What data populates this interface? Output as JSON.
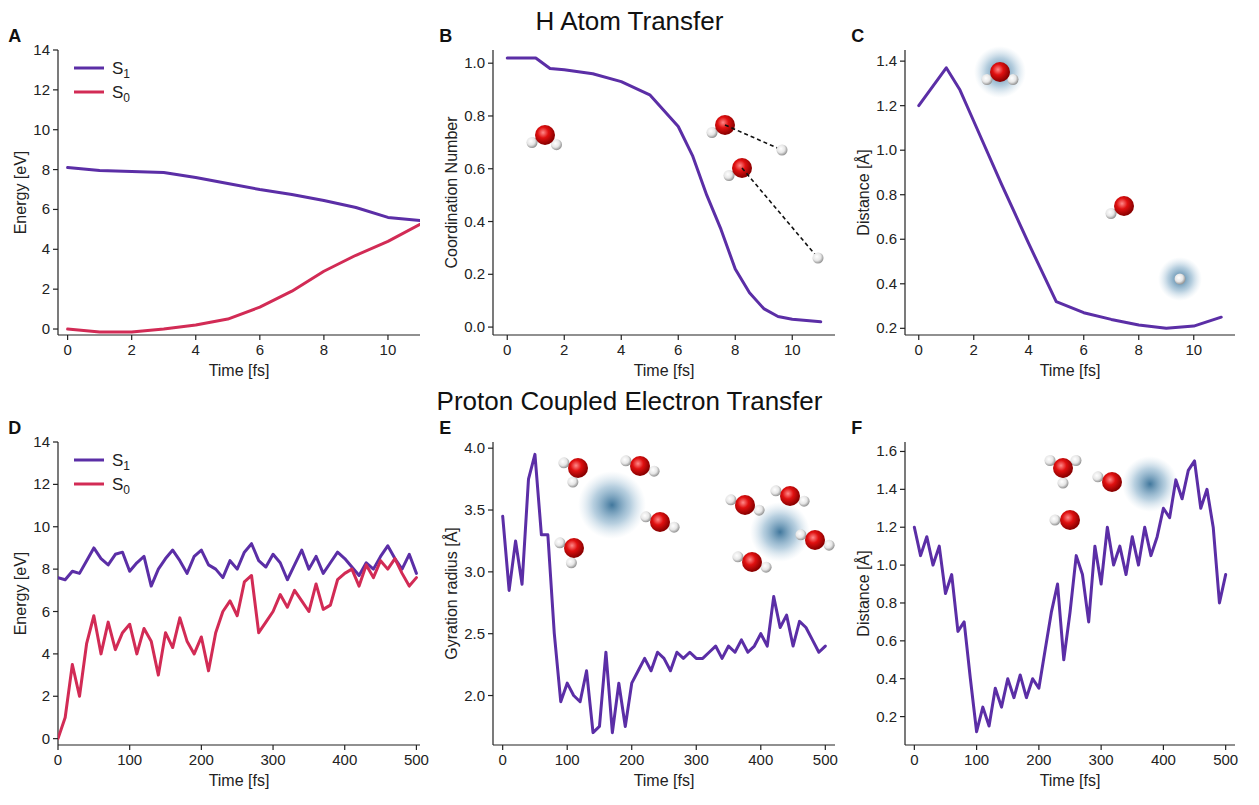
{
  "section_titles": [
    "H Atom Transfer",
    "Proton Coupled Electron Transfer"
  ],
  "chart_data": [
    {
      "panel": "A",
      "type": "line",
      "xlabel": "Time [fs]",
      "ylabel": "Energy [eV]",
      "x": [
        0,
        1,
        2,
        3,
        4,
        5,
        6,
        7,
        8,
        9,
        10,
        11
      ],
      "series": [
        {
          "name": "S1",
          "color": "#5b2ea6",
          "values": [
            8.1,
            7.95,
            7.9,
            7.85,
            7.6,
            7.3,
            7.0,
            6.75,
            6.45,
            6.1,
            5.6,
            5.45
          ]
        },
        {
          "name": "S0",
          "color": "#d22b55",
          "values": [
            0,
            -0.15,
            -0.15,
            0,
            0.2,
            0.5,
            1.1,
            1.9,
            2.9,
            3.7,
            4.4,
            5.25
          ]
        }
      ],
      "xlim": [
        -0.3,
        11
      ],
      "ylim": [
        -0.3,
        14
      ],
      "xticks": [
        0,
        2,
        4,
        6,
        8,
        10
      ],
      "yticks": [
        0,
        2,
        4,
        6,
        8,
        10,
        12,
        14
      ],
      "legend": "upper left",
      "grid": false
    },
    {
      "panel": "B",
      "type": "line",
      "xlabel": "Time [fs]",
      "ylabel": "Coordination Number",
      "x": [
        0,
        1,
        1.5,
        2,
        3,
        4,
        5,
        6,
        6.5,
        7,
        7.5,
        8,
        8.5,
        9,
        9.5,
        10,
        11
      ],
      "values": [
        1.02,
        1.02,
        0.98,
        0.975,
        0.96,
        0.93,
        0.88,
        0.76,
        0.65,
        0.5,
        0.37,
        0.22,
        0.13,
        0.07,
        0.04,
        0.03,
        0.02
      ],
      "color": "#5b2ea6",
      "xlim": [
        -0.5,
        11.5
      ],
      "ylim": [
        -0.03,
        1.05
      ],
      "xticks": [
        0,
        2,
        4,
        6,
        8,
        10
      ],
      "yticks": [
        {
          "value": 0,
          "label": "0.0"
        },
        0.2,
        0.4,
        0.6,
        0.8,
        {
          "value": 1,
          "label": "1.0"
        }
      ],
      "grid": false
    },
    {
      "panel": "C",
      "type": "line",
      "xlabel": "Time [fs]",
      "ylabel": "Distance [Å]",
      "x": [
        0,
        1,
        1.5,
        2,
        3,
        4,
        5,
        6,
        7,
        8,
        9,
        10,
        11
      ],
      "values": [
        1.2,
        1.37,
        1.27,
        1.13,
        0.85,
        0.58,
        0.32,
        0.27,
        0.24,
        0.215,
        0.2,
        0.21,
        0.25
      ],
      "color": "#5b2ea6",
      "xlim": [
        -0.5,
        11.5
      ],
      "ylim": [
        0.17,
        1.45
      ],
      "xticks": [
        0,
        2,
        4,
        6,
        8,
        10
      ],
      "yticks": [
        0.2,
        0.4,
        0.6,
        0.8,
        {
          "value": 1,
          "label": "1.0"
        },
        1.2,
        1.4
      ],
      "grid": false
    },
    {
      "panel": "D",
      "type": "line",
      "xlabel": "Time [fs]",
      "ylabel": "Energy [eV]",
      "x": [
        0,
        10,
        20,
        30,
        40,
        50,
        60,
        70,
        80,
        90,
        100,
        110,
        120,
        130,
        140,
        150,
        160,
        170,
        180,
        190,
        200,
        210,
        220,
        230,
        240,
        250,
        260,
        270,
        280,
        290,
        300,
        310,
        320,
        330,
        340,
        350,
        360,
        370,
        380,
        390,
        400,
        410,
        420,
        430,
        440,
        450,
        460,
        470,
        480,
        490,
        500
      ],
      "series": [
        {
          "name": "S1",
          "color": "#5b2ea6",
          "values": [
            7.6,
            7.5,
            7.9,
            7.8,
            8.4,
            9.0,
            8.5,
            8.2,
            8.7,
            8.8,
            7.9,
            8.3,
            8.6,
            7.2,
            8.0,
            8.5,
            8.9,
            8.4,
            7.8,
            8.6,
            8.9,
            8.2,
            8.0,
            7.6,
            8.4,
            8.0,
            8.8,
            9.2,
            8.4,
            8.1,
            8.7,
            8.3,
            7.5,
            8.2,
            8.9,
            8.0,
            8.6,
            7.8,
            8.3,
            8.8,
            8.5,
            8.1,
            7.7,
            8.3,
            8.0,
            8.6,
            9.1,
            8.5,
            8.0,
            8.7,
            7.8
          ]
        },
        {
          "name": "S0",
          "color": "#d22b55",
          "values": [
            0,
            1.0,
            3.5,
            2.0,
            4.5,
            5.8,
            4.0,
            5.5,
            4.2,
            5.0,
            5.4,
            4.0,
            5.2,
            4.6,
            3.0,
            5.0,
            4.3,
            5.7,
            4.6,
            4.0,
            4.8,
            3.2,
            5.0,
            6.0,
            6.5,
            5.8,
            7.4,
            7.7,
            5.0,
            5.5,
            6.0,
            6.8,
            6.2,
            7.0,
            6.5,
            6.0,
            7.3,
            6.1,
            6.3,
            7.5,
            7.8,
            8.0,
            7.2,
            8.2,
            7.6,
            8.4,
            8.0,
            8.5,
            7.8,
            7.2,
            7.6
          ]
        }
      ],
      "xlim": [
        0,
        505
      ],
      "ylim": [
        -0.3,
        14
      ],
      "xticks": [
        0,
        100,
        200,
        300,
        400,
        500
      ],
      "yticks": [
        0,
        2,
        4,
        6,
        8,
        10,
        12,
        14
      ],
      "legend": "upper left",
      "grid": false
    },
    {
      "panel": "E",
      "type": "line",
      "xlabel": "Time [fs]",
      "ylabel": "Gyration radius [Å]",
      "x": [
        0,
        10,
        20,
        30,
        40,
        50,
        60,
        70,
        80,
        90,
        100,
        110,
        120,
        130,
        140,
        150,
        160,
        170,
        180,
        190,
        200,
        210,
        220,
        230,
        240,
        250,
        260,
        270,
        280,
        290,
        300,
        310,
        320,
        330,
        340,
        350,
        360,
        370,
        380,
        390,
        400,
        410,
        420,
        430,
        440,
        450,
        460,
        470,
        480,
        490,
        500
      ],
      "values": [
        3.45,
        2.85,
        3.25,
        2.9,
        3.75,
        3.95,
        3.3,
        3.3,
        2.5,
        1.95,
        2.1,
        2.0,
        1.95,
        2.2,
        1.7,
        1.75,
        2.35,
        1.7,
        2.1,
        1.75,
        2.1,
        2.2,
        2.3,
        2.2,
        2.35,
        2.3,
        2.2,
        2.35,
        2.3,
        2.35,
        2.3,
        2.3,
        2.35,
        2.4,
        2.3,
        2.4,
        2.35,
        2.45,
        2.35,
        2.4,
        2.5,
        2.4,
        2.8,
        2.55,
        2.65,
        2.4,
        2.6,
        2.55,
        2.45,
        2.35,
        2.4
      ],
      "color": "#5b2ea6",
      "xlim": [
        -15,
        515
      ],
      "ylim": [
        1.6,
        4.05
      ],
      "xticks": [
        0,
        100,
        200,
        300,
        400,
        500
      ],
      "yticks": [
        {
          "value": 2,
          "label": "2.0"
        },
        2.5,
        {
          "value": 3,
          "label": "3.0"
        },
        3.5,
        {
          "value": 4,
          "label": "4.0"
        }
      ],
      "grid": false
    },
    {
      "panel": "F",
      "type": "line",
      "xlabel": "Time [fs]",
      "ylabel": "Distance [Å]",
      "x": [
        0,
        10,
        20,
        30,
        40,
        50,
        60,
        70,
        80,
        90,
        100,
        110,
        120,
        130,
        140,
        150,
        160,
        170,
        180,
        190,
        200,
        210,
        220,
        230,
        240,
        250,
        260,
        270,
        280,
        290,
        300,
        310,
        320,
        330,
        340,
        350,
        360,
        370,
        380,
        390,
        400,
        410,
        420,
        430,
        440,
        450,
        460,
        470,
        480,
        490,
        500
      ],
      "values": [
        1.2,
        1.05,
        1.15,
        1.0,
        1.1,
        0.85,
        0.95,
        0.65,
        0.7,
        0.4,
        0.12,
        0.25,
        0.15,
        0.35,
        0.25,
        0.4,
        0.3,
        0.42,
        0.3,
        0.4,
        0.35,
        0.55,
        0.75,
        0.9,
        0.5,
        0.75,
        1.05,
        0.95,
        0.7,
        1.1,
        0.9,
        1.2,
        1.0,
        1.1,
        0.95,
        1.15,
        1.0,
        1.2,
        1.05,
        1.15,
        1.3,
        1.25,
        1.45,
        1.35,
        1.5,
        1.55,
        1.3,
        1.4,
        1.2,
        0.8,
        0.95
      ],
      "color": "#5b2ea6",
      "xlim": [
        -15,
        515
      ],
      "ylim": [
        0.05,
        1.65
      ],
      "xticks": [
        0,
        100,
        200,
        300,
        400,
        500
      ],
      "yticks": [
        0.2,
        0.4,
        0.6,
        0.8,
        {
          "value": 1,
          "label": "1.0"
        },
        1.2,
        1.4,
        1.6
      ],
      "grid": false
    }
  ]
}
